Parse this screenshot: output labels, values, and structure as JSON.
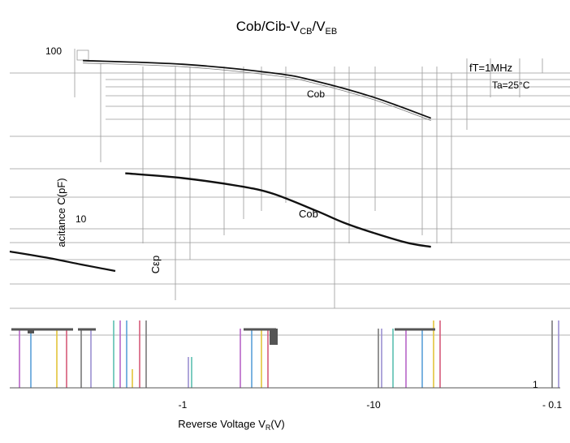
{
  "chart_data": {
    "type": "line",
    "title": {
      "main": "Cob/Cib-V",
      "sub1": "CB",
      "slash": "/V",
      "sub2": "EB"
    },
    "xlabel": {
      "main": "Reverse Voltage   V",
      "sub": "R",
      "tail": "(V)"
    },
    "ylabel": "acitance   C(pF)",
    "x_scale": "log",
    "y_scale": "log",
    "x_tick_labels": [
      "-1",
      "-10",
      "- 0.1"
    ],
    "y_tick_labels": [
      "100",
      "10",
      "1"
    ],
    "grid": true,
    "series": [
      {
        "name": "Cob",
        "x": [
          -0.5,
          -1,
          -2,
          -3,
          -5,
          -7,
          -10,
          -15,
          -20
        ],
        "y": [
          19.5,
          18.2,
          16.2,
          14.5,
          11.4,
          9.6,
          8.3,
          7.2,
          6.8
        ]
      },
      {
        "name": "Cob",
        "x": [
          -0.3,
          -1,
          -3,
          -5,
          -10,
          -20
        ],
        "y": [
          98,
          93,
          82,
          73,
          58,
          43
        ]
      }
    ],
    "annotations": [
      "Cob",
      "Cob",
      "Cεp",
      "fT=1MHz",
      "Ta=25°C"
    ],
    "colors": {
      "curve": "#111111",
      "grid": "#9a9a9a"
    }
  }
}
